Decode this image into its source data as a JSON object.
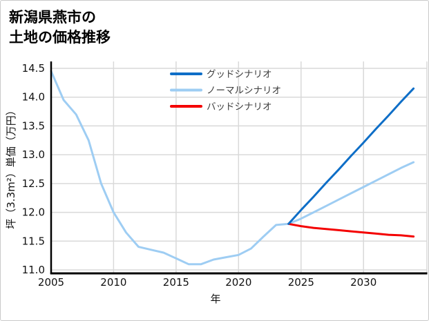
{
  "header": {
    "title_line1": "新潟県燕市の",
    "title_line2": "土地の価格推移"
  },
  "chart_data": {
    "type": "line",
    "title": "新潟県燕市の土地の価格推移",
    "xlabel": "年",
    "ylabel": "坪（3.3m²）単価（万円）",
    "grid": true,
    "legend_position": "upper center",
    "xlim": [
      2005,
      2035.1
    ],
    "ylim": [
      10.94,
      14.62
    ],
    "x_tick_values": [
      2005,
      2010,
      2015,
      2020,
      2025,
      2030
    ],
    "x_tick_labels": [
      "2005",
      "2010",
      "2015",
      "2020",
      "2025",
      "2030"
    ],
    "y_tick_values": [
      11.0,
      11.5,
      12.0,
      12.5,
      13.0,
      13.5,
      14.0,
      14.5
    ],
    "y_tick_labels": [
      "11.0",
      "11.5",
      "12.0",
      "12.5",
      "13.0",
      "13.5",
      "14.0",
      "14.5"
    ],
    "series": [
      {
        "key": "historical",
        "name": "historical",
        "color": "#9ecdf3",
        "x": [
          2005,
          2006,
          2007,
          2008,
          2009,
          2010,
          2011,
          2012,
          2013,
          2014,
          2015,
          2016,
          2017,
          2018,
          2019,
          2020,
          2021,
          2022,
          2023,
          2024
        ],
        "values": [
          14.45,
          13.95,
          13.7,
          13.25,
          12.5,
          12.0,
          11.65,
          11.4,
          11.35,
          11.3,
          11.2,
          11.1,
          11.1,
          11.18,
          11.22,
          11.26,
          11.37,
          11.58,
          11.78,
          11.8
        ]
      },
      {
        "key": "good",
        "name": "グッドシナリオ",
        "color": "#0e6ec7",
        "x": [
          2024,
          2025,
          2026,
          2027,
          2028,
          2029,
          2030,
          2031,
          2032,
          2033,
          2034
        ],
        "values": [
          11.8,
          12.04,
          12.27,
          12.51,
          12.74,
          12.98,
          13.21,
          13.45,
          13.68,
          13.92,
          14.15
        ]
      },
      {
        "key": "normal",
        "name": "ノーマルシナリオ",
        "color": "#9ecdf3",
        "x": [
          2024,
          2025,
          2026,
          2027,
          2028,
          2029,
          2030,
          2031,
          2032,
          2033,
          2034
        ],
        "values": [
          11.8,
          11.89,
          12.0,
          12.11,
          12.22,
          12.33,
          12.44,
          12.55,
          12.66,
          12.77,
          12.87
        ]
      },
      {
        "key": "bad",
        "name": "バッドシナリオ",
        "color": "#f40000",
        "x": [
          2024,
          2025,
          2026,
          2027,
          2028,
          2029,
          2030,
          2031,
          2032,
          2033,
          2034
        ],
        "values": [
          11.8,
          11.76,
          11.73,
          11.71,
          11.69,
          11.67,
          11.65,
          11.63,
          11.61,
          11.6,
          11.58
        ]
      }
    ],
    "legend": [
      {
        "key": "good",
        "label": "グッドシナリオ",
        "color": "#0e6ec7"
      },
      {
        "key": "normal",
        "label": "ノーマルシナリオ",
        "color": "#9ecdf3"
      },
      {
        "key": "bad",
        "label": "バッドシナリオ",
        "color": "#f40000"
      }
    ],
    "style": {
      "grid_color": "#d9d9d9",
      "spine_color": "#000000",
      "right_spine_color": "#d9d9d9"
    }
  }
}
